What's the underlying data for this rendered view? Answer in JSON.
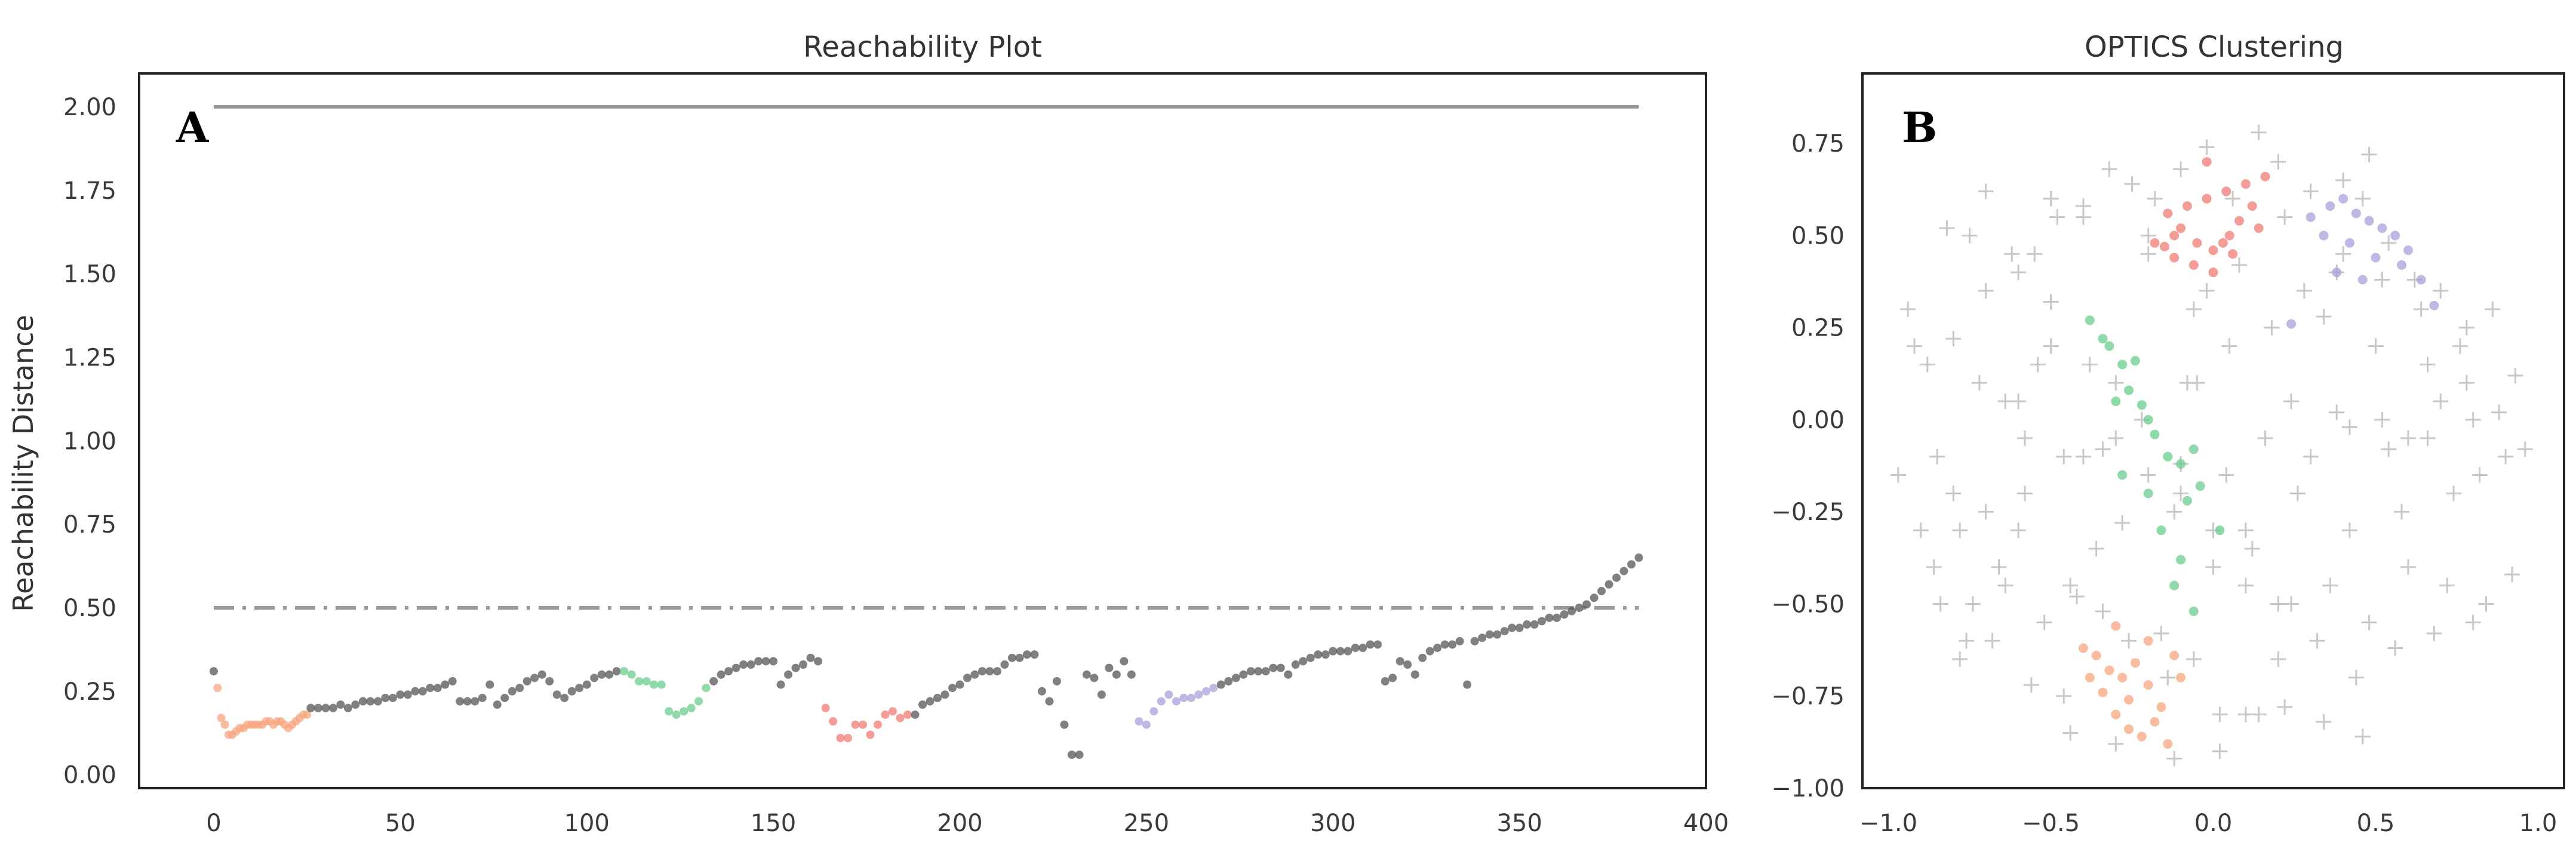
{
  "chart_data": [
    {
      "panel_label": "A",
      "type": "scatter",
      "title": "Reachability Plot",
      "xlabel": "",
      "ylabel": "Reachability Distance",
      "xlim": [
        -20,
        400
      ],
      "ylim": [
        -0.04,
        2.1
      ],
      "xticks": [
        0,
        50,
        100,
        150,
        200,
        250,
        300,
        350,
        400
      ],
      "yticks": [
        0.0,
        0.25,
        0.5,
        0.75,
        1.0,
        1.25,
        1.5,
        1.75,
        2.0
      ],
      "ytick_labels": [
        "0.00",
        "0.25",
        "0.50",
        "0.75",
        "1.00",
        "1.25",
        "1.50",
        "1.75",
        "2.00"
      ],
      "grid": false,
      "reference_lines": [
        {
          "y": 2.0,
          "x_range": [
            0,
            382
          ],
          "style": "solid",
          "color": "#999999"
        },
        {
          "y": 0.5,
          "x_range": [
            0,
            382
          ],
          "style": "dashdot",
          "color": "#999999"
        }
      ],
      "series": [
        {
          "color": "#555555",
          "x": [
            0
          ],
          "y": [
            0.31
          ]
        },
        {
          "color": "#f7a57f",
          "x": [
            1,
            2,
            3,
            4,
            5,
            6,
            7,
            8,
            9,
            10,
            11,
            12,
            13,
            14,
            15,
            16,
            17,
            18,
            19,
            20,
            21,
            22,
            23,
            24,
            25
          ],
          "y": [
            0.26,
            0.17,
            0.15,
            0.12,
            0.12,
            0.13,
            0.14,
            0.14,
            0.15,
            0.15,
            0.15,
            0.15,
            0.15,
            0.16,
            0.16,
            0.15,
            0.16,
            0.16,
            0.15,
            0.14,
            0.15,
            0.16,
            0.17,
            0.18,
            0.18
          ]
        },
        {
          "color": "#555555",
          "x": [
            26,
            28,
            30,
            32,
            34,
            36,
            38,
            40,
            42,
            44,
            46,
            48,
            50,
            52,
            54,
            56,
            58,
            60,
            62,
            64,
            66,
            68,
            70,
            72,
            74,
            76,
            78,
            80,
            82,
            84,
            86,
            88,
            90,
            92,
            94,
            96,
            98,
            100,
            102,
            104,
            106,
            108
          ],
          "y": [
            0.2,
            0.2,
            0.2,
            0.2,
            0.21,
            0.2,
            0.21,
            0.22,
            0.22,
            0.22,
            0.23,
            0.23,
            0.24,
            0.24,
            0.25,
            0.25,
            0.26,
            0.26,
            0.27,
            0.28,
            0.22,
            0.22,
            0.22,
            0.23,
            0.27,
            0.21,
            0.23,
            0.25,
            0.26,
            0.28,
            0.29,
            0.3,
            0.28,
            0.24,
            0.23,
            0.25,
            0.26,
            0.27,
            0.29,
            0.3,
            0.3,
            0.31
          ]
        },
        {
          "color": "#6acc8f",
          "x": [
            110,
            112,
            114,
            116,
            118,
            120,
            122,
            124,
            126,
            128,
            130,
            132
          ],
          "y": [
            0.31,
            0.3,
            0.28,
            0.28,
            0.27,
            0.27,
            0.19,
            0.18,
            0.19,
            0.2,
            0.22,
            0.26
          ]
        },
        {
          "color": "#555555",
          "x": [
            134,
            136,
            138,
            140,
            142,
            144,
            146,
            148,
            150,
            152,
            154,
            156,
            158,
            160,
            162
          ],
          "y": [
            0.28,
            0.3,
            0.31,
            0.32,
            0.33,
            0.33,
            0.34,
            0.34,
            0.34,
            0.27,
            0.3,
            0.32,
            0.33,
            0.35,
            0.34
          ]
        },
        {
          "color": "#ef7c73",
          "x": [
            164,
            166,
            168,
            170,
            172,
            174,
            176,
            178,
            180,
            182,
            184,
            186
          ],
          "y": [
            0.2,
            0.16,
            0.11,
            0.11,
            0.15,
            0.15,
            0.12,
            0.15,
            0.18,
            0.19,
            0.17,
            0.18
          ]
        },
        {
          "color": "#555555",
          "x": [
            188,
            190,
            192,
            194,
            196,
            198,
            200,
            202,
            204,
            206,
            208,
            210,
            212,
            214,
            216,
            218,
            220,
            222,
            224,
            226,
            228,
            230,
            232,
            234,
            236,
            238,
            240,
            242,
            244,
            246
          ],
          "y": [
            0.18,
            0.21,
            0.22,
            0.23,
            0.24,
            0.26,
            0.27,
            0.29,
            0.3,
            0.31,
            0.31,
            0.31,
            0.33,
            0.35,
            0.35,
            0.36,
            0.36,
            0.25,
            0.22,
            0.28,
            0.15,
            0.06,
            0.06,
            0.3,
            0.29,
            0.24,
            0.32,
            0.3,
            0.34,
            0.3
          ]
        },
        {
          "color": "#ab9fdb",
          "x": [
            248,
            250,
            252,
            254,
            256,
            258,
            260,
            262,
            264,
            266,
            268
          ],
          "y": [
            0.16,
            0.15,
            0.19,
            0.22,
            0.24,
            0.22,
            0.23,
            0.23,
            0.24,
            0.25,
            0.26
          ]
        },
        {
          "color": "#555555",
          "x": [
            270,
            272,
            274,
            276,
            278,
            280,
            282,
            284,
            286,
            288,
            290,
            292,
            294,
            296,
            298,
            300,
            302,
            304,
            306,
            308,
            310,
            312,
            314,
            316,
            318,
            320,
            322,
            324,
            326,
            328,
            330,
            332,
            334,
            336,
            338,
            340,
            342,
            344,
            346,
            348,
            350,
            352,
            354,
            356,
            358,
            360,
            362,
            364,
            366,
            368,
            370,
            372,
            374,
            376,
            378,
            380,
            382
          ],
          "y": [
            0.27,
            0.28,
            0.29,
            0.3,
            0.31,
            0.31,
            0.31,
            0.32,
            0.32,
            0.3,
            0.33,
            0.34,
            0.35,
            0.36,
            0.36,
            0.37,
            0.37,
            0.37,
            0.38,
            0.38,
            0.39,
            0.39,
            0.28,
            0.29,
            0.34,
            0.33,
            0.3,
            0.35,
            0.37,
            0.38,
            0.39,
            0.39,
            0.4,
            0.27,
            0.4,
            0.41,
            0.42,
            0.42,
            0.43,
            0.44,
            0.44,
            0.45,
            0.45,
            0.46,
            0.47,
            0.47,
            0.48,
            0.49,
            0.5,
            0.51,
            0.53,
            0.55,
            0.57,
            0.59,
            0.61,
            0.63,
            0.65
          ]
        }
      ]
    },
    {
      "panel_label": "B",
      "type": "scatter",
      "title": "OPTICS Clustering",
      "xlabel": "",
      "ylabel": "",
      "xlim": [
        -1.08,
        1.08
      ],
      "ylim": [
        -1.0,
        0.94
      ],
      "xticks": [
        -1.0,
        -0.5,
        0.0,
        0.5,
        1.0
      ],
      "xtick_labels": [
        "−1.0",
        "−0.5",
        "0.0",
        "0.5",
        "1.0"
      ],
      "yticks": [
        -1.0,
        -0.75,
        -0.5,
        -0.25,
        0.0,
        0.25,
        0.5,
        0.75
      ],
      "ytick_labels": [
        "−1.00",
        "−0.75",
        "−0.50",
        "−0.25",
        "0.00",
        "0.25",
        "0.50",
        "0.75"
      ],
      "grid": false,
      "noise": {
        "marker": "plus",
        "color": "#c8c8c8",
        "x": [
          -0.94,
          -0.88,
          -0.82,
          -0.9,
          -0.75,
          -0.7,
          -0.62,
          -0.55,
          -0.48,
          -0.4,
          -0.32,
          -0.25,
          -0.18,
          -0.1,
          -0.02,
          0.06,
          0.14,
          0.22,
          0.3,
          0.38,
          0.46,
          0.54,
          0.62,
          0.7,
          0.78,
          0.86,
          0.93,
          -0.97,
          -0.85,
          -0.78,
          -0.66,
          -0.58,
          -0.44,
          -0.36,
          -0.28,
          -0.12,
          0.1,
          0.26,
          0.42,
          0.58,
          0.74,
          0.82,
          0.9,
          0.96,
          -0.92,
          -0.8,
          -0.72,
          -0.6,
          -0.5,
          -0.38,
          -0.3,
          -0.22,
          -0.05,
          0.05,
          0.18,
          0.34,
          0.5,
          0.66,
          0.78,
          0.88,
          -0.86,
          -0.74,
          -0.64,
          -0.52,
          -0.42,
          -0.34,
          -0.26,
          -0.16,
          0.0,
          0.12,
          0.24,
          0.36,
          0.48,
          0.6,
          0.72,
          0.84,
          0.92,
          -0.78,
          -0.68,
          -0.56,
          -0.46,
          -0.14,
          0.02,
          0.2,
          0.32,
          0.44,
          0.56,
          0.68,
          0.8,
          -0.7,
          -0.6,
          -0.5,
          -0.2,
          -0.06,
          0.08,
          0.28,
          0.4,
          0.52,
          0.64,
          0.76,
          -0.58,
          -0.46,
          -0.34,
          -0.1,
          0.04,
          0.16,
          0.3,
          0.42,
          0.54,
          0.66,
          -0.44,
          -0.3,
          -0.12,
          0.02,
          0.1,
          0.22,
          0.34,
          0.46,
          -0.64,
          -0.54,
          -0.02,
          -0.08,
          0.24,
          0.38,
          0.52,
          0.6,
          0.7,
          0.8,
          -0.8,
          -0.7,
          -0.6,
          -0.4,
          -0.3,
          -0.2,
          -0.1,
          0.0,
          0.1,
          0.2,
          -0.5,
          -0.4,
          -0.2,
          0.2,
          0.4,
          0.48,
          -0.84,
          -0.76,
          -0.06,
          0.14
        ],
        "y": [
          0.3,
          0.15,
          0.52,
          -0.3,
          0.5,
          0.62,
          0.45,
          0.45,
          0.55,
          0.58,
          0.68,
          0.64,
          0.6,
          0.68,
          0.74,
          0.6,
          0.78,
          0.55,
          0.62,
          0.4,
          0.6,
          0.48,
          0.38,
          0.35,
          0.25,
          0.3,
          0.12,
          -0.15,
          -0.1,
          -0.3,
          -0.4,
          -0.2,
          -0.45,
          -0.35,
          -0.28,
          -0.25,
          -0.3,
          -0.2,
          -0.3,
          -0.25,
          -0.2,
          -0.15,
          -0.1,
          -0.08,
          0.2,
          0.22,
          0.1,
          0.05,
          0.2,
          0.15,
          0.1,
          0.0,
          0.1,
          0.2,
          0.25,
          0.28,
          0.2,
          0.15,
          0.1,
          0.02,
          -0.4,
          -0.5,
          -0.45,
          -0.55,
          -0.48,
          -0.52,
          -0.6,
          -0.58,
          -0.4,
          -0.35,
          -0.5,
          -0.45,
          -0.55,
          -0.4,
          -0.45,
          -0.5,
          -0.42,
          -0.65,
          -0.6,
          -0.72,
          -0.75,
          -0.7,
          -0.8,
          -0.65,
          -0.6,
          -0.7,
          -0.62,
          -0.58,
          -0.55,
          0.35,
          0.4,
          0.32,
          0.45,
          0.3,
          0.42,
          0.35,
          0.45,
          0.38,
          0.3,
          0.2,
          -0.05,
          -0.1,
          -0.08,
          -0.12,
          -0.15,
          -0.05,
          -0.1,
          -0.02,
          -0.08,
          -0.05,
          -0.85,
          -0.88,
          -0.92,
          -0.9,
          -0.8,
          -0.78,
          -0.82,
          -0.86,
          0.05,
          0.15,
          0.35,
          0.1,
          0.05,
          0.02,
          0.0,
          -0.05,
          0.05,
          0.0,
          -0.2,
          -0.25,
          -0.3,
          -0.1,
          -0.05,
          -0.15,
          -0.2,
          -0.3,
          -0.45,
          -0.5,
          0.6,
          0.55,
          0.5,
          0.7,
          0.65,
          0.72,
          -0.5,
          -0.6,
          -0.65,
          -0.8
        ]
      },
      "clusters": [
        {
          "color": "#ef7c73",
          "marker": "circle",
          "x": [
            -0.12,
            -0.08,
            -0.02,
            0.04,
            0.1,
            0.16,
            -0.15,
            -0.1,
            -0.05,
            0.0,
            0.05,
            0.08,
            0.12,
            -0.18,
            -0.12,
            -0.06,
            0.0,
            0.06,
            0.14,
            -0.14,
            -0.02,
            0.03
          ],
          "y": [
            0.5,
            0.58,
            0.6,
            0.62,
            0.64,
            0.66,
            0.47,
            0.52,
            0.48,
            0.46,
            0.5,
            0.54,
            0.58,
            0.48,
            0.44,
            0.42,
            0.4,
            0.45,
            0.52,
            0.56,
            0.7,
            0.48
          ]
        },
        {
          "color": "#ab9fdb",
          "marker": "circle",
          "x": [
            0.3,
            0.36,
            0.4,
            0.44,
            0.48,
            0.52,
            0.56,
            0.6,
            0.34,
            0.42,
            0.5,
            0.58,
            0.64,
            0.68,
            0.38,
            0.46,
            0.24
          ],
          "y": [
            0.55,
            0.58,
            0.6,
            0.56,
            0.54,
            0.52,
            0.5,
            0.46,
            0.5,
            0.48,
            0.44,
            0.42,
            0.38,
            0.31,
            0.4,
            0.38,
            0.26
          ]
        },
        {
          "color": "#6acc8f",
          "marker": "circle",
          "x": [
            -0.38,
            -0.34,
            -0.32,
            -0.28,
            -0.24,
            -0.22,
            -0.26,
            -0.2,
            -0.18,
            -0.14,
            -0.1,
            -0.06,
            -0.04,
            -0.08,
            -0.1,
            -0.12,
            -0.2,
            -0.16,
            -0.06,
            0.02,
            -0.28,
            -0.3
          ],
          "y": [
            0.27,
            0.22,
            0.2,
            0.15,
            0.16,
            0.04,
            0.08,
            0.0,
            -0.04,
            -0.1,
            -0.12,
            -0.08,
            -0.18,
            -0.22,
            -0.38,
            -0.45,
            -0.2,
            -0.3,
            -0.52,
            -0.3,
            -0.15,
            0.05
          ]
        },
        {
          "color": "#f7a57f",
          "marker": "circle",
          "x": [
            -0.4,
            -0.36,
            -0.32,
            -0.28,
            -0.24,
            -0.2,
            -0.16,
            -0.12,
            -0.34,
            -0.3,
            -0.26,
            -0.22,
            -0.18,
            -0.38,
            -0.26,
            -0.14,
            -0.1,
            -0.2,
            -0.3
          ],
          "y": [
            -0.62,
            -0.64,
            -0.68,
            -0.7,
            -0.66,
            -0.72,
            -0.78,
            -0.64,
            -0.74,
            -0.8,
            -0.84,
            -0.86,
            -0.82,
            -0.7,
            -0.76,
            -0.88,
            -0.7,
            -0.6,
            -0.56
          ]
        }
      ]
    }
  ]
}
